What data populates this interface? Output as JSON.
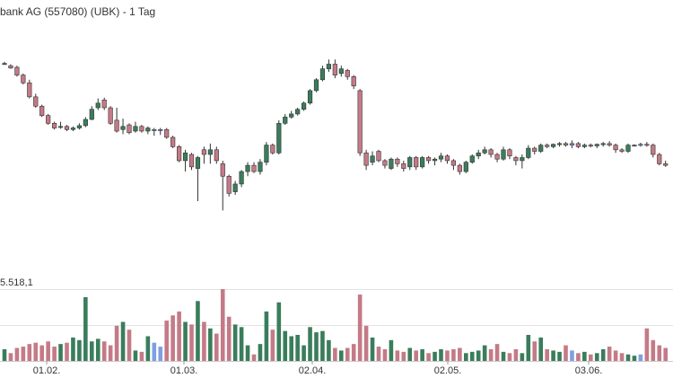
{
  "chart_title": "bank AG (557080) (UBK) - 1 Tag",
  "volume_label": "5.518,1",
  "colors": {
    "up": "#3a7d5c",
    "down": "#c47a87",
    "neutral": "#7f9fe0",
    "grid": "#e3e3e3",
    "wick": "#333333"
  },
  "chart_data": {
    "type": "candlestick",
    "title": "bank AG (557080) (UBK) - 1 Tag",
    "x_ticks": [
      "01.02.",
      "01.03.",
      "02.04.",
      "02.05.",
      "03.06."
    ],
    "ylim": [
      3.35,
      6.35
    ],
    "volume_max_label": "5.518,1",
    "volume_ylim": [
      0,
      5518.1
    ],
    "candles": [
      {
        "o": 6.17,
        "h": 6.19,
        "l": 6.15,
        "c": 6.16,
        "v": 900,
        "d": "up"
      },
      {
        "o": 6.14,
        "h": 6.16,
        "l": 6.1,
        "c": 6.11,
        "v": 600,
        "d": "down"
      },
      {
        "o": 6.12,
        "h": 6.14,
        "l": 6.0,
        "c": 6.02,
        "v": 1000,
        "d": "down"
      },
      {
        "o": 6.02,
        "h": 6.04,
        "l": 5.9,
        "c": 5.92,
        "v": 1100,
        "d": "down"
      },
      {
        "o": 5.92,
        "h": 5.96,
        "l": 5.72,
        "c": 5.74,
        "v": 1300,
        "d": "down"
      },
      {
        "o": 5.74,
        "h": 5.78,
        "l": 5.6,
        "c": 5.62,
        "v": 1400,
        "d": "down"
      },
      {
        "o": 5.62,
        "h": 5.64,
        "l": 5.48,
        "c": 5.5,
        "v": 1200,
        "d": "down"
      },
      {
        "o": 5.5,
        "h": 5.52,
        "l": 5.38,
        "c": 5.4,
        "v": 1500,
        "d": "down"
      },
      {
        "o": 5.4,
        "h": 5.42,
        "l": 5.32,
        "c": 5.34,
        "v": 1100,
        "d": "down"
      },
      {
        "o": 5.36,
        "h": 5.42,
        "l": 5.33,
        "c": 5.36,
        "v": 1300,
        "d": "up"
      },
      {
        "o": 5.36,
        "h": 5.38,
        "l": 5.3,
        "c": 5.32,
        "v": 1400,
        "d": "down"
      },
      {
        "o": 5.32,
        "h": 5.36,
        "l": 5.3,
        "c": 5.34,
        "v": 1800,
        "d": "up"
      },
      {
        "o": 5.34,
        "h": 5.4,
        "l": 5.32,
        "c": 5.37,
        "v": 1600,
        "d": "up"
      },
      {
        "o": 5.37,
        "h": 5.48,
        "l": 5.35,
        "c": 5.45,
        "v": 4900,
        "d": "up"
      },
      {
        "o": 5.45,
        "h": 5.62,
        "l": 5.44,
        "c": 5.58,
        "v": 1500,
        "d": "up"
      },
      {
        "o": 5.6,
        "h": 5.72,
        "l": 5.57,
        "c": 5.66,
        "v": 1700,
        "d": "up"
      },
      {
        "o": 5.7,
        "h": 5.73,
        "l": 5.57,
        "c": 5.6,
        "v": 1500,
        "d": "down"
      },
      {
        "o": 5.6,
        "h": 5.62,
        "l": 5.38,
        "c": 5.4,
        "v": 1200,
        "d": "down"
      },
      {
        "o": 5.44,
        "h": 5.6,
        "l": 5.28,
        "c": 5.3,
        "v": 2700,
        "d": "down"
      },
      {
        "o": 5.32,
        "h": 5.46,
        "l": 5.26,
        "c": 5.36,
        "v": 3000,
        "d": "up"
      },
      {
        "o": 5.38,
        "h": 5.4,
        "l": 5.26,
        "c": 5.28,
        "v": 2400,
        "d": "down"
      },
      {
        "o": 5.3,
        "h": 5.42,
        "l": 5.28,
        "c": 5.36,
        "v": 800,
        "d": "up"
      },
      {
        "o": 5.36,
        "h": 5.38,
        "l": 5.28,
        "c": 5.3,
        "v": 700,
        "d": "down"
      },
      {
        "o": 5.3,
        "h": 5.36,
        "l": 5.26,
        "c": 5.34,
        "v": 1900,
        "d": "up"
      },
      {
        "o": 5.32,
        "h": 5.34,
        "l": 5.24,
        "c": 5.32,
        "v": 1400,
        "d": "neutral"
      },
      {
        "o": 5.32,
        "h": 5.34,
        "l": 5.25,
        "c": 5.32,
        "v": 1100,
        "d": "neutral"
      },
      {
        "o": 5.32,
        "h": 5.34,
        "l": 5.2,
        "c": 5.22,
        "v": 3100,
        "d": "down"
      },
      {
        "o": 5.22,
        "h": 5.24,
        "l": 5.08,
        "c": 5.1,
        "v": 3500,
        "d": "down"
      },
      {
        "o": 5.1,
        "h": 5.12,
        "l": 4.9,
        "c": 4.92,
        "v": 3800,
        "d": "down"
      },
      {
        "o": 4.92,
        "h": 5.06,
        "l": 4.78,
        "c": 5.02,
        "v": 3000,
        "d": "up"
      },
      {
        "o": 5.0,
        "h": 5.02,
        "l": 4.8,
        "c": 4.84,
        "v": 2800,
        "d": "down"
      },
      {
        "o": 4.82,
        "h": 4.98,
        "l": 4.4,
        "c": 4.96,
        "v": 4600,
        "d": "up"
      },
      {
        "o": 5.06,
        "h": 5.1,
        "l": 4.88,
        "c": 5.0,
        "v": 3000,
        "d": "down"
      },
      {
        "o": 5.0,
        "h": 5.14,
        "l": 4.88,
        "c": 5.06,
        "v": 2500,
        "d": "up"
      },
      {
        "o": 5.06,
        "h": 5.1,
        "l": 4.88,
        "c": 4.92,
        "v": 2100,
        "d": "down"
      },
      {
        "o": 4.88,
        "h": 4.92,
        "l": 4.28,
        "c": 4.72,
        "v": 5518,
        "d": "down"
      },
      {
        "o": 4.72,
        "h": 4.74,
        "l": 4.46,
        "c": 4.5,
        "v": 3400,
        "d": "down"
      },
      {
        "o": 4.52,
        "h": 4.66,
        "l": 4.48,
        "c": 4.62,
        "v": 2800,
        "d": "up"
      },
      {
        "o": 4.62,
        "h": 4.8,
        "l": 4.58,
        "c": 4.78,
        "v": 2600,
        "d": "up"
      },
      {
        "o": 4.78,
        "h": 4.9,
        "l": 4.72,
        "c": 4.86,
        "v": 1200,
        "d": "up"
      },
      {
        "o": 4.86,
        "h": 4.9,
        "l": 4.76,
        "c": 4.78,
        "v": 500,
        "d": "down"
      },
      {
        "o": 4.78,
        "h": 4.94,
        "l": 4.74,
        "c": 4.9,
        "v": 1300,
        "d": "up"
      },
      {
        "o": 4.9,
        "h": 5.16,
        "l": 4.86,
        "c": 5.12,
        "v": 3800,
        "d": "up"
      },
      {
        "o": 5.12,
        "h": 5.14,
        "l": 5.0,
        "c": 5.02,
        "v": 2400,
        "d": "down"
      },
      {
        "o": 5.02,
        "h": 5.44,
        "l": 5.0,
        "c": 5.4,
        "v": 4500,
        "d": "up"
      },
      {
        "o": 5.4,
        "h": 5.52,
        "l": 5.38,
        "c": 5.48,
        "v": 2300,
        "d": "up"
      },
      {
        "o": 5.48,
        "h": 5.56,
        "l": 5.46,
        "c": 5.52,
        "v": 1900,
        "d": "up"
      },
      {
        "o": 5.52,
        "h": 5.6,
        "l": 5.5,
        "c": 5.58,
        "v": 2000,
        "d": "up"
      },
      {
        "o": 5.58,
        "h": 5.68,
        "l": 5.56,
        "c": 5.66,
        "v": 1200,
        "d": "up"
      },
      {
        "o": 5.66,
        "h": 5.84,
        "l": 5.64,
        "c": 5.82,
        "v": 2600,
        "d": "up"
      },
      {
        "o": 5.82,
        "h": 5.98,
        "l": 5.8,
        "c": 5.96,
        "v": 2200,
        "d": "up"
      },
      {
        "o": 5.96,
        "h": 6.14,
        "l": 5.94,
        "c": 6.1,
        "v": 2300,
        "d": "up"
      },
      {
        "o": 6.1,
        "h": 6.22,
        "l": 6.06,
        "c": 6.16,
        "v": 1600,
        "d": "up"
      },
      {
        "o": 6.16,
        "h": 6.22,
        "l": 5.98,
        "c": 6.02,
        "v": 1000,
        "d": "down"
      },
      {
        "o": 6.04,
        "h": 6.14,
        "l": 6.0,
        "c": 6.1,
        "v": 800,
        "d": "up"
      },
      {
        "o": 6.08,
        "h": 6.1,
        "l": 5.96,
        "c": 6.0,
        "v": 1000,
        "d": "down"
      },
      {
        "o": 6.0,
        "h": 6.02,
        "l": 5.84,
        "c": 5.88,
        "v": 1300,
        "d": "down"
      },
      {
        "o": 5.82,
        "h": 5.84,
        "l": 4.98,
        "c": 5.02,
        "v": 5100,
        "d": "down"
      },
      {
        "o": 5.02,
        "h": 5.06,
        "l": 4.8,
        "c": 4.86,
        "v": 2700,
        "d": "down"
      },
      {
        "o": 4.9,
        "h": 5.04,
        "l": 4.86,
        "c": 4.98,
        "v": 1800,
        "d": "up"
      },
      {
        "o": 5.04,
        "h": 5.06,
        "l": 4.9,
        "c": 4.92,
        "v": 1100,
        "d": "down"
      },
      {
        "o": 4.92,
        "h": 4.94,
        "l": 4.82,
        "c": 4.86,
        "v": 900,
        "d": "down"
      },
      {
        "o": 4.82,
        "h": 4.96,
        "l": 4.8,
        "c": 4.94,
        "v": 1600,
        "d": "up"
      },
      {
        "o": 4.94,
        "h": 4.96,
        "l": 4.84,
        "c": 4.88,
        "v": 800,
        "d": "down"
      },
      {
        "o": 4.88,
        "h": 4.92,
        "l": 4.78,
        "c": 4.82,
        "v": 700,
        "d": "down"
      },
      {
        "o": 4.84,
        "h": 4.98,
        "l": 4.8,
        "c": 4.96,
        "v": 1000,
        "d": "up"
      },
      {
        "o": 4.96,
        "h": 4.98,
        "l": 4.8,
        "c": 4.84,
        "v": 800,
        "d": "down"
      },
      {
        "o": 4.84,
        "h": 4.98,
        "l": 4.82,
        "c": 4.96,
        "v": 900,
        "d": "up"
      },
      {
        "o": 4.96,
        "h": 4.98,
        "l": 4.88,
        "c": 4.92,
        "v": 600,
        "d": "down"
      },
      {
        "o": 4.92,
        "h": 4.96,
        "l": 4.86,
        "c": 4.94,
        "v": 700,
        "d": "up"
      },
      {
        "o": 4.94,
        "h": 5.02,
        "l": 4.9,
        "c": 4.98,
        "v": 900,
        "d": "up"
      },
      {
        "o": 4.98,
        "h": 5.0,
        "l": 4.88,
        "c": 4.92,
        "v": 800,
        "d": "down"
      },
      {
        "o": 4.92,
        "h": 4.94,
        "l": 4.8,
        "c": 4.86,
        "v": 900,
        "d": "down"
      },
      {
        "o": 4.86,
        "h": 4.88,
        "l": 4.74,
        "c": 4.78,
        "v": 1000,
        "d": "down"
      },
      {
        "o": 4.78,
        "h": 4.92,
        "l": 4.76,
        "c": 4.9,
        "v": 600,
        "d": "up"
      },
      {
        "o": 4.9,
        "h": 5.0,
        "l": 4.88,
        "c": 4.98,
        "v": 700,
        "d": "up"
      },
      {
        "o": 4.98,
        "h": 5.06,
        "l": 4.94,
        "c": 5.02,
        "v": 800,
        "d": "up"
      },
      {
        "o": 5.02,
        "h": 5.1,
        "l": 5.0,
        "c": 5.06,
        "v": 1200,
        "d": "up"
      },
      {
        "o": 5.06,
        "h": 5.08,
        "l": 4.96,
        "c": 5.0,
        "v": 900,
        "d": "down"
      },
      {
        "o": 5.0,
        "h": 5.02,
        "l": 4.9,
        "c": 4.94,
        "v": 1300,
        "d": "down"
      },
      {
        "o": 4.94,
        "h": 5.1,
        "l": 4.92,
        "c": 5.06,
        "v": 700,
        "d": "up"
      },
      {
        "o": 5.06,
        "h": 5.08,
        "l": 4.94,
        "c": 4.98,
        "v": 600,
        "d": "down"
      },
      {
        "o": 4.96,
        "h": 4.98,
        "l": 4.86,
        "c": 4.92,
        "v": 900,
        "d": "down"
      },
      {
        "o": 4.92,
        "h": 5.0,
        "l": 4.82,
        "c": 4.96,
        "v": 600,
        "d": "up"
      },
      {
        "o": 4.96,
        "h": 5.12,
        "l": 4.94,
        "c": 5.08,
        "v": 2000,
        "d": "up"
      },
      {
        "o": 5.08,
        "h": 5.1,
        "l": 5.0,
        "c": 5.04,
        "v": 1500,
        "d": "down"
      },
      {
        "o": 5.04,
        "h": 5.14,
        "l": 5.02,
        "c": 5.12,
        "v": 1800,
        "d": "up"
      },
      {
        "o": 5.12,
        "h": 5.14,
        "l": 5.08,
        "c": 5.1,
        "v": 900,
        "d": "down"
      },
      {
        "o": 5.1,
        "h": 5.14,
        "l": 5.08,
        "c": 5.13,
        "v": 800,
        "d": "up"
      },
      {
        "o": 5.13,
        "h": 5.16,
        "l": 5.1,
        "c": 5.14,
        "v": 700,
        "d": "up"
      },
      {
        "o": 5.14,
        "h": 5.16,
        "l": 5.1,
        "c": 5.12,
        "v": 1200,
        "d": "down"
      },
      {
        "o": 5.12,
        "h": 5.18,
        "l": 5.08,
        "c": 5.14,
        "v": 800,
        "d": "neutral"
      },
      {
        "o": 5.14,
        "h": 5.16,
        "l": 5.08,
        "c": 5.1,
        "v": 600,
        "d": "down"
      },
      {
        "o": 5.1,
        "h": 5.14,
        "l": 5.08,
        "c": 5.12,
        "v": 700,
        "d": "up"
      },
      {
        "o": 5.12,
        "h": 5.14,
        "l": 5.09,
        "c": 5.11,
        "v": 500,
        "d": "down"
      },
      {
        "o": 5.11,
        "h": 5.14,
        "l": 5.08,
        "c": 5.13,
        "v": 600,
        "d": "up"
      },
      {
        "o": 5.13,
        "h": 5.16,
        "l": 5.1,
        "c": 5.14,
        "v": 900,
        "d": "up"
      },
      {
        "o": 5.14,
        "h": 5.17,
        "l": 5.1,
        "c": 5.12,
        "v": 1100,
        "d": "down"
      },
      {
        "o": 5.12,
        "h": 5.14,
        "l": 5.02,
        "c": 5.06,
        "v": 800,
        "d": "down"
      },
      {
        "o": 5.06,
        "h": 5.08,
        "l": 5.02,
        "c": 5.04,
        "v": 600,
        "d": "down"
      },
      {
        "o": 5.04,
        "h": 5.14,
        "l": 5.02,
        "c": 5.12,
        "v": 500,
        "d": "up"
      },
      {
        "o": 5.12,
        "h": 5.13,
        "l": 5.11,
        "c": 5.12,
        "v": 400,
        "d": "up"
      },
      {
        "o": 5.12,
        "h": 5.15,
        "l": 5.1,
        "c": 5.13,
        "v": 500,
        "d": "neutral"
      },
      {
        "o": 5.13,
        "h": 5.16,
        "l": 5.1,
        "c": 5.12,
        "v": 2500,
        "d": "down"
      },
      {
        "o": 5.12,
        "h": 5.14,
        "l": 4.96,
        "c": 5.0,
        "v": 1600,
        "d": "down"
      },
      {
        "o": 5.0,
        "h": 5.02,
        "l": 4.86,
        "c": 4.88,
        "v": 1200,
        "d": "down"
      },
      {
        "o": 4.88,
        "h": 4.92,
        "l": 4.84,
        "c": 4.86,
        "v": 1000,
        "d": "down"
      }
    ]
  }
}
